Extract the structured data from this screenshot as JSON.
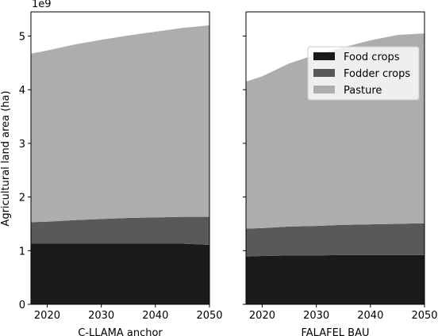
{
  "chart_data": [
    {
      "type": "area",
      "stacked": true,
      "xlabel": "C-LLAMA anchor",
      "ylabel": "Agricultural land area (ha)",
      "y_offset_label": "1e9",
      "x": [
        2017,
        2020,
        2025,
        2030,
        2035,
        2040,
        2045,
        2050
      ],
      "xlim": [
        2017,
        2050
      ],
      "ylim": [
        0,
        5450000000.0
      ],
      "xticks": [
        2020,
        2030,
        2040,
        2050
      ],
      "yticks": [
        0,
        1,
        2,
        3,
        4,
        5
      ],
      "series": [
        {
          "name": "Food crops",
          "color": "#1a1a1a",
          "values": [
            1130000000.0,
            1130000000.0,
            1130000000.0,
            1130000000.0,
            1130000000.0,
            1130000000.0,
            1130000000.0,
            1110000000.0
          ]
        },
        {
          "name": "Fodder crops",
          "color": "#595959",
          "values": [
            400000000.0,
            410000000.0,
            440000000.0,
            460000000.0,
            480000000.0,
            490000000.0,
            500000000.0,
            520000000.0
          ]
        },
        {
          "name": "Pasture",
          "color": "#adadad",
          "values": [
            3140000000.0,
            3190000000.0,
            3270000000.0,
            3340000000.0,
            3400000000.0,
            3460000000.0,
            3520000000.0,
            3570000000.0
          ]
        }
      ]
    },
    {
      "type": "area",
      "stacked": true,
      "xlabel": "FALAFEL BAU",
      "x": [
        2017,
        2020,
        2025,
        2030,
        2035,
        2040,
        2045,
        2050
      ],
      "xlim": [
        2017,
        2050
      ],
      "ylim": [
        0,
        5450000000.0
      ],
      "xticks": [
        2020,
        2030,
        2040,
        2050
      ],
      "yticks": [
        0,
        1,
        2,
        3,
        4,
        5
      ],
      "legend": {
        "placement": "upper right"
      },
      "series": [
        {
          "name": "Food crops",
          "color": "#1a1a1a",
          "values": [
            890000000.0,
            900000000.0,
            910000000.0,
            910000000.0,
            920000000.0,
            920000000.0,
            920000000.0,
            920000000.0
          ]
        },
        {
          "name": "Fodder crops",
          "color": "#595959",
          "values": [
            520000000.0,
            520000000.0,
            540000000.0,
            550000000.0,
            560000000.0,
            570000000.0,
            580000000.0,
            590000000.0
          ]
        },
        {
          "name": "Pasture",
          "color": "#adadad",
          "values": [
            2740000000.0,
            2830000000.0,
            3040000000.0,
            3200000000.0,
            3310000000.0,
            3430000000.0,
            3520000000.0,
            3540000000.0
          ]
        }
      ]
    }
  ]
}
